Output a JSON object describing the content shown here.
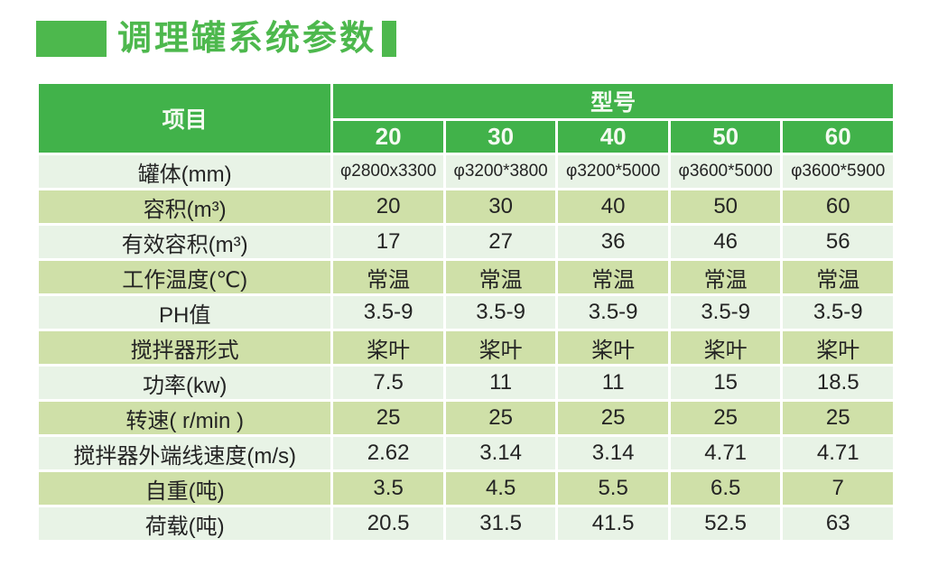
{
  "page": {
    "title": "调理罐系统参数"
  },
  "table": {
    "corner_header": "项目",
    "group_header": "型号",
    "models": [
      "20",
      "30",
      "40",
      "50",
      "60"
    ],
    "rows": [
      {
        "label": "罐体(mm)",
        "values": [
          "φ2800x3300",
          "φ3200*3800",
          "φ3200*5000",
          "φ3600*5000",
          "φ3600*5900"
        ]
      },
      {
        "label": "容积(m³)",
        "values": [
          "20",
          "30",
          "40",
          "50",
          "60"
        ]
      },
      {
        "label": "有效容积(m³)",
        "values": [
          "17",
          "27",
          "36",
          "46",
          "56"
        ]
      },
      {
        "label": "工作温度(℃)",
        "values": [
          "常温",
          "常温",
          "常温",
          "常温",
          "常温"
        ]
      },
      {
        "label": "PH值",
        "values": [
          "3.5-9",
          "3.5-9",
          "3.5-9",
          "3.5-9",
          "3.5-9"
        ]
      },
      {
        "label": "搅拌器形式",
        "values": [
          "桨叶",
          "桨叶",
          "桨叶",
          "桨叶",
          "桨叶"
        ]
      },
      {
        "label": "功率(kw)",
        "values": [
          "7.5",
          "11",
          "11",
          "15",
          "18.5"
        ]
      },
      {
        "label": "转速( r/min )",
        "values": [
          "25",
          "25",
          "25",
          "25",
          "25"
        ]
      },
      {
        "label": "搅拌器外端线速度(m/s)",
        "values": [
          "2.62",
          "3.14",
          "3.14",
          "4.71",
          "4.71"
        ]
      },
      {
        "label": "自重(吨)",
        "values": [
          "3.5",
          "4.5",
          "5.5",
          "6.5",
          "7"
        ]
      },
      {
        "label": "荷载(吨)",
        "values": [
          "20.5",
          "31.5",
          "41.5",
          "52.5",
          "63"
        ]
      }
    ]
  },
  "colors": {
    "title_green": "#4db84d",
    "header_green": "#41b24a",
    "row_light": "#e8f3e6",
    "row_medium": "#cfe0a8",
    "text_dark": "#242424",
    "header_text": "#f4faf1"
  }
}
